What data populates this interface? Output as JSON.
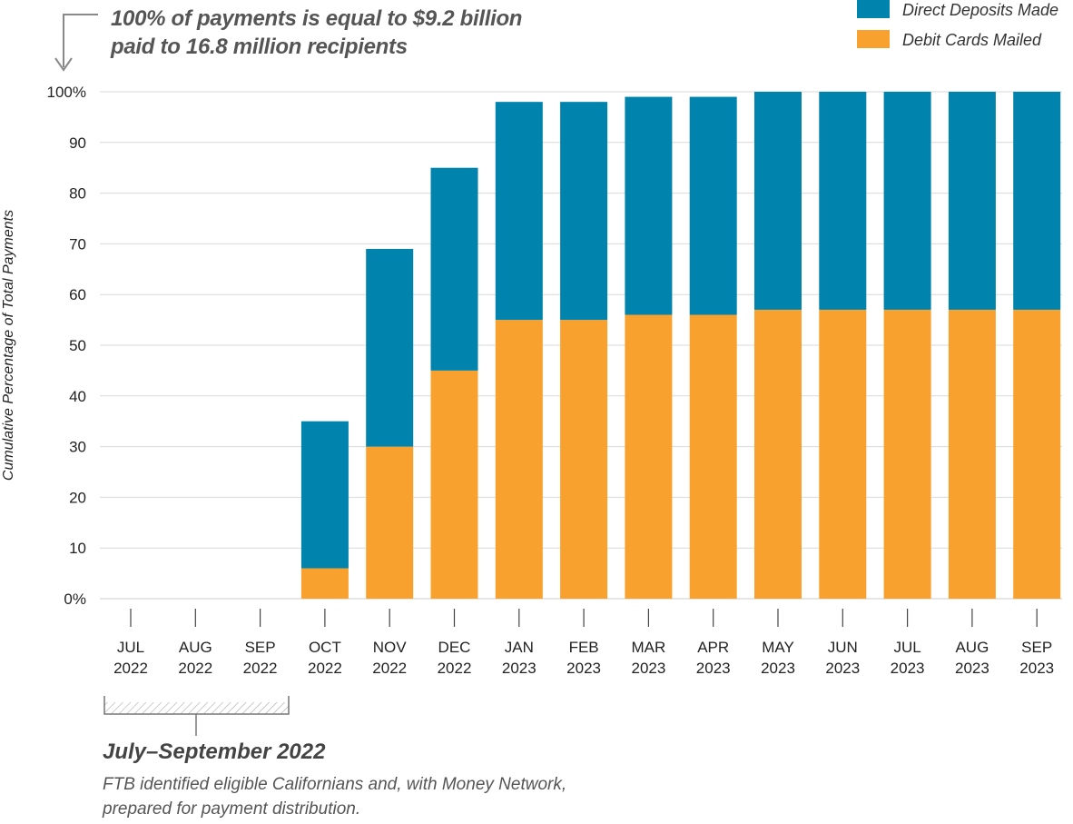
{
  "note": {
    "line1": "100% of payments is equal to $9.2 billion",
    "line2": "paid to 16.8 million recipients"
  },
  "period": {
    "title": "July–September 2022",
    "desc_line1": "FTB identified eligible Californians and, with Money Network,",
    "desc_line2": "prepared for payment distribution."
  },
  "chart_data": {
    "type": "bar",
    "stacked": true,
    "title": "",
    "xlabel": "",
    "ylabel": "Cumulative Percentage of Total Payments",
    "ylim": [
      0,
      100
    ],
    "yticks": [
      0,
      10,
      20,
      30,
      40,
      50,
      60,
      70,
      80,
      90,
      100
    ],
    "ytick_labels": [
      "0%",
      "10",
      "20",
      "30",
      "40",
      "50",
      "60",
      "70",
      "80",
      "90",
      "100%"
    ],
    "grid": true,
    "legend_position": "top-right",
    "categories": [
      [
        "JUL",
        "2022"
      ],
      [
        "AUG",
        "2022"
      ],
      [
        "SEP",
        "2022"
      ],
      [
        "OCT",
        "2022"
      ],
      [
        "NOV",
        "2022"
      ],
      [
        "DEC",
        "2022"
      ],
      [
        "JAN",
        "2023"
      ],
      [
        "FEB",
        "2023"
      ],
      [
        "MAR",
        "2023"
      ],
      [
        "APR",
        "2023"
      ],
      [
        "MAY",
        "2023"
      ],
      [
        "JUN",
        "2023"
      ],
      [
        "JUL",
        "2023"
      ],
      [
        "AUG",
        "2023"
      ],
      [
        "SEP",
        "2023"
      ]
    ],
    "series": [
      {
        "name": "Debit Cards Mailed",
        "color": "#F9A12E",
        "values": [
          0,
          0,
          0,
          6,
          30,
          45,
          55,
          55,
          56,
          56,
          57,
          57,
          57,
          57,
          57
        ]
      },
      {
        "name": "Direct Deposits Made",
        "color": "#0083AD",
        "values": [
          0,
          0,
          0,
          29,
          39,
          40,
          43,
          43,
          43,
          43,
          43,
          43,
          43,
          43,
          43
        ]
      }
    ],
    "legend_order": [
      "Direct Deposits Made",
      "Debit Cards Mailed"
    ]
  }
}
